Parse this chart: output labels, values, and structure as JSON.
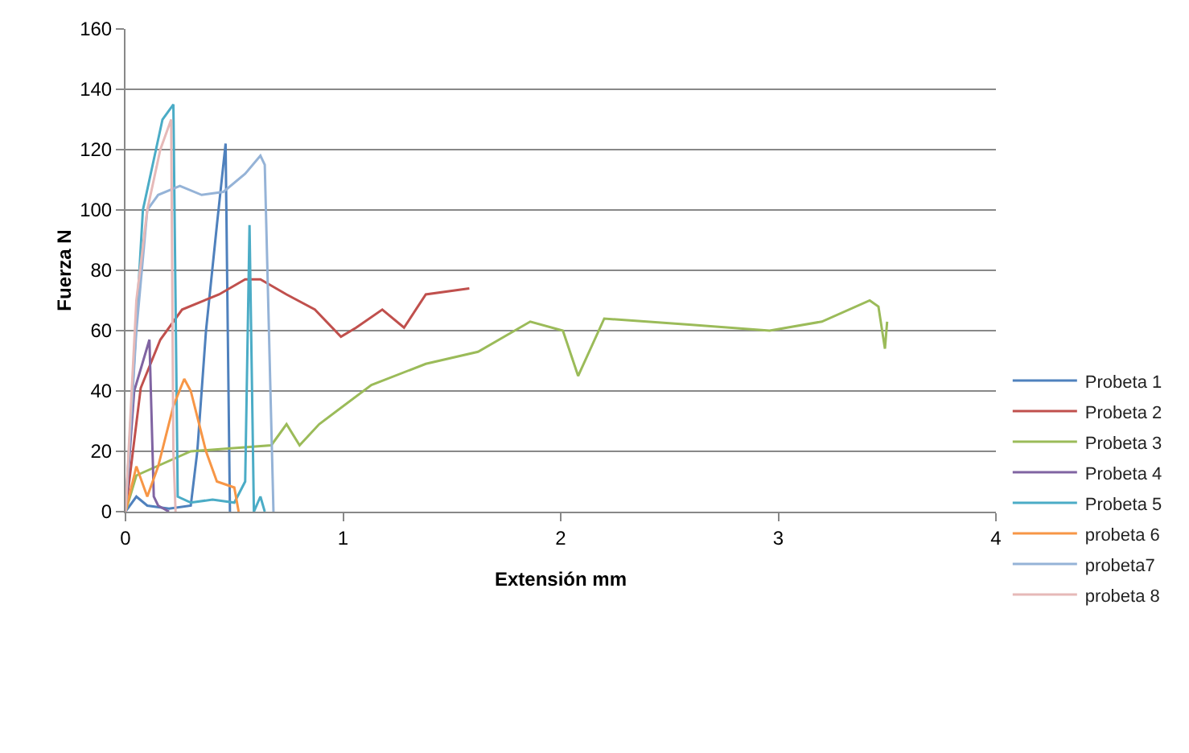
{
  "chart_data": {
    "type": "line",
    "xlabel": "Extensión mm",
    "ylabel": "Fuerza N",
    "xlim": [
      0,
      4
    ],
    "xticks": [
      0,
      1,
      2,
      3,
      4
    ],
    "ylim": [
      0,
      160
    ],
    "yticks": [
      0,
      20,
      40,
      60,
      80,
      100,
      120,
      140,
      160
    ],
    "grid": "y",
    "legend": "right",
    "marker": "none",
    "line_style": "solid",
    "series": [
      {
        "name": "Probeta 1",
        "color": "#4f81bd",
        "x": [
          0,
          0.05,
          0.1,
          0.2,
          0.3,
          0.33,
          0.37,
          0.42,
          0.46,
          0.47,
          0.48
        ],
        "values": [
          0,
          5,
          2,
          1,
          2,
          20,
          60,
          95,
          122,
          60,
          0
        ]
      },
      {
        "name": "Probeta 2",
        "color": "#c0504d",
        "x": [
          0,
          0.07,
          0.16,
          0.26,
          0.43,
          0.55,
          0.62,
          0.74,
          0.87,
          0.99,
          1.06,
          1.18,
          1.28,
          1.38,
          1.58
        ],
        "values": [
          0,
          41,
          57,
          67,
          72,
          77,
          77,
          72,
          67,
          58,
          61,
          67,
          61,
          72,
          74
        ]
      },
      {
        "name": "Probeta 3",
        "color": "#9bbb59",
        "x": [
          0,
          0.05,
          0.3,
          0.67,
          0.74,
          0.8,
          0.89,
          1.13,
          1.38,
          1.62,
          1.86,
          2.01,
          2.08,
          2.2,
          2.59,
          2.96,
          3.2,
          3.42,
          3.46,
          3.49,
          3.5
        ],
        "values": [
          0,
          12,
          20,
          22,
          29,
          22,
          29,
          42,
          49,
          53,
          63,
          60,
          45,
          64,
          62,
          60,
          63,
          70,
          68,
          54,
          63
        ]
      },
      {
        "name": "Probeta 4",
        "color": "#8064a2",
        "x": [
          0,
          0.04,
          0.11,
          0.13,
          0.15,
          0.2
        ],
        "values": [
          0,
          40,
          57,
          5,
          2,
          0
        ]
      },
      {
        "name": "Probeta 5",
        "color": "#4bacc6",
        "x": [
          0,
          0.08,
          0.17,
          0.22,
          0.24,
          0.3,
          0.4,
          0.5,
          0.55,
          0.57,
          0.59,
          0.62,
          0.64
        ],
        "values": [
          0,
          100,
          130,
          135,
          5,
          3,
          4,
          3,
          10,
          95,
          0,
          5,
          0
        ]
      },
      {
        "name": "probeta 6",
        "color": "#f79646",
        "x": [
          0,
          0.05,
          0.1,
          0.15,
          0.22,
          0.27,
          0.3,
          0.37,
          0.42,
          0.5,
          0.52
        ],
        "values": [
          0,
          15,
          5,
          15,
          35,
          44,
          40,
          20,
          10,
          8,
          0
        ]
      },
      {
        "name": "probeta7",
        "color": "#95b3d7",
        "x": [
          0,
          0.05,
          0.1,
          0.15,
          0.25,
          0.35,
          0.45,
          0.55,
          0.62,
          0.64,
          0.68
        ],
        "values": [
          0,
          60,
          100,
          105,
          108,
          105,
          106,
          112,
          118,
          115,
          0
        ]
      },
      {
        "name": "probeta 8",
        "color": "#e6b9b8",
        "x": [
          0,
          0.05,
          0.1,
          0.16,
          0.21,
          0.22,
          0.23
        ],
        "values": [
          0,
          70,
          100,
          120,
          130,
          20,
          0
        ]
      }
    ]
  }
}
